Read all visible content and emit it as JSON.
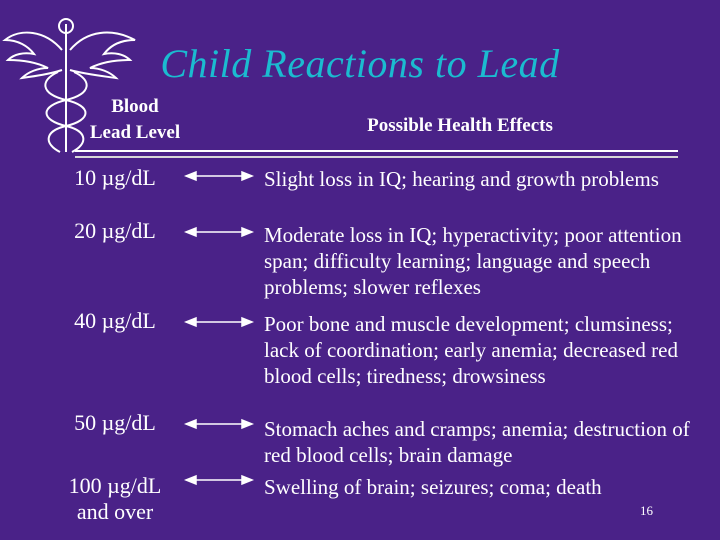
{
  "title": "Child Reactions to Lead",
  "headers": {
    "left_line1": "Blood",
    "left_line2": "Lead Level",
    "right": "Possible Health Effects"
  },
  "rows": [
    {
      "level": "10 µg/dL",
      "effect": "Slight loss in IQ; hearing and growth problems"
    },
    {
      "level": "20 µg/dL",
      "effect": "Moderate loss in IQ; hyperactivity; poor attention span; difficulty learning; language and speech problems; slower reflexes"
    },
    {
      "level": "40 µg/dL",
      "effect": "Poor bone and muscle development; clumsiness; lack of coordination; early anemia; decreased red blood cells; tiredness; drowsiness"
    },
    {
      "level": "50 µg/dL",
      "effect": "Stomach aches and cramps; anemia; destruction of red blood cells; brain damage"
    },
    {
      "level_line1": "100 µg/dL",
      "level_line2": "and over",
      "effect": "Swelling of brain; seizures; coma; death"
    }
  ],
  "page_number": "16",
  "colors": {
    "background": "#4a2288",
    "title": "#1bbbd0",
    "text": "#ffffff"
  },
  "icons": {
    "logo": "caduceus-icon"
  }
}
